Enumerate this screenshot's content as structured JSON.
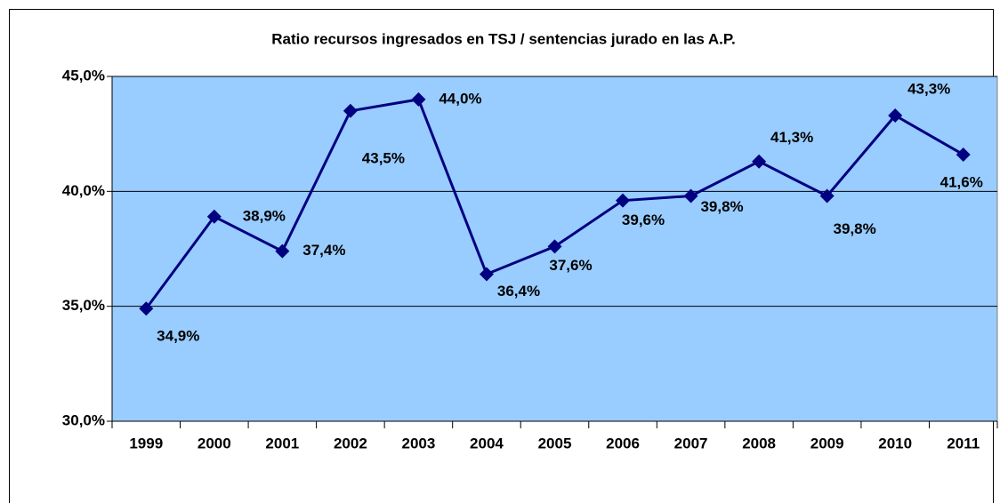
{
  "chart_data": {
    "type": "line",
    "title": "Ratio recursos ingresados en TSJ / sentencias jurado en las A.P.",
    "categories": [
      "1999",
      "2000",
      "2001",
      "2002",
      "2003",
      "2004",
      "2005",
      "2006",
      "2007",
      "2008",
      "2009",
      "2010",
      "2011"
    ],
    "series": [
      {
        "name": "Ratio",
        "color": "#000080",
        "values": [
          34.9,
          38.9,
          37.4,
          43.5,
          44.0,
          36.4,
          37.6,
          39.6,
          39.8,
          41.3,
          39.8,
          43.3,
          41.6
        ],
        "value_labels": [
          "34,9%",
          "38,9%",
          "37,4%",
          "43,5%",
          "44,0%",
          "36,4%",
          "37,6%",
          "39,6%",
          "39,8%",
          "41,3%",
          "39,8%",
          "43,3%",
          "41,6%"
        ]
      }
    ],
    "ylim": [
      30,
      45
    ],
    "yticks": [
      {
        "value": 30,
        "label": "30,0%"
      },
      {
        "value": 35,
        "label": "35,0%"
      },
      {
        "value": 40,
        "label": "40,0%"
      },
      {
        "value": 45,
        "label": "45,0%"
      }
    ],
    "grid": true,
    "background": "#99ccff"
  }
}
